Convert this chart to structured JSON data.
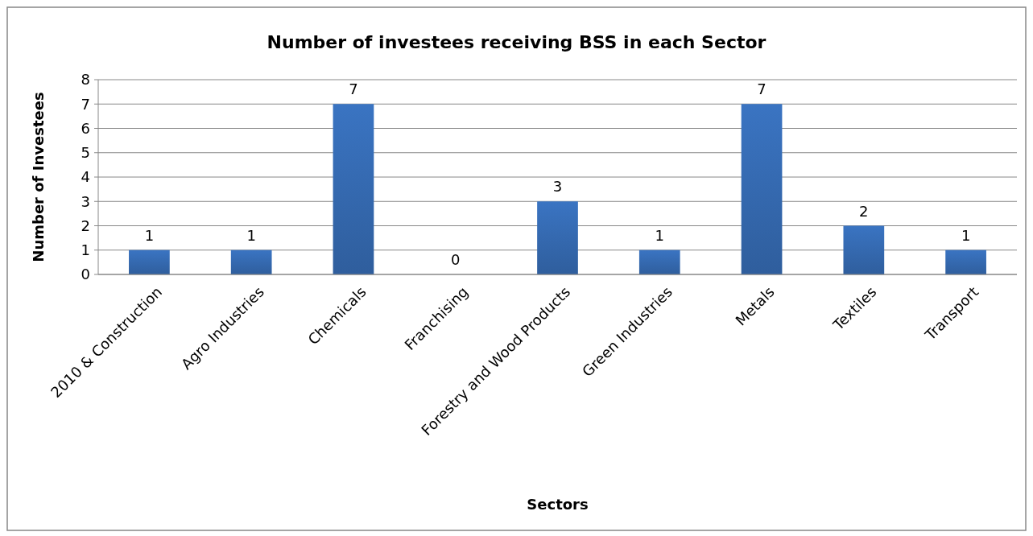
{
  "chart_data": {
    "type": "bar",
    "title": "Number of investees receiving BSS in each Sector",
    "xlabel": "Sectors",
    "ylabel": "Number of Investees",
    "categories": [
      "2010 & Construction",
      "Agro Industries",
      "Chemicals",
      "Franchising",
      "Forestry and Wood Products",
      "Green Industries",
      "Metals",
      "Textiles",
      "Transport"
    ],
    "values": [
      1,
      1,
      7,
      0,
      3,
      1,
      7,
      2,
      1
    ],
    "color": "#3a74c2",
    "ylim": [
      0,
      8
    ],
    "yticks": [
      0,
      1,
      2,
      3,
      4,
      5,
      6,
      7,
      8
    ],
    "grid": "y",
    "data_labels": true
  }
}
